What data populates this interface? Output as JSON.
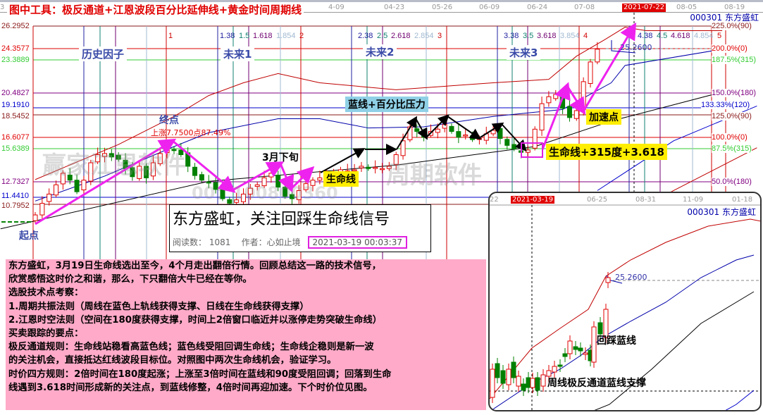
{
  "title": "图中工具：极反通道+江恩波段百分比延伸线+黄金时间周期线",
  "date_axis": [
    {
      "label": "3",
      "hl": false
    },
    {
      "label": "4-09",
      "hl": false
    },
    {
      "label": "04-23",
      "hl": false
    },
    {
      "label": "05-26",
      "hl": false
    },
    {
      "label": "06-09",
      "hl": false
    },
    {
      "label": "06-24",
      "hl": false
    },
    {
      "label": "07-08",
      "hl": false
    },
    {
      "label": "2021-07-22",
      "hl": true
    },
    {
      "label": "08-05",
      "hl": false
    },
    {
      "label": "08-19",
      "hl": false
    }
  ],
  "stock": "000301  东方盛虹",
  "price_levels": [
    {
      "price": "26.2952",
      "color": "#8b1a1a",
      "pct": "225.0%(90)"
    },
    {
      "price": "24.3577",
      "color": "#e00000",
      "pct": "200.0%(0)"
    },
    {
      "price": "23.3889",
      "color": "#33cc33",
      "pct": "187.5%(315)"
    },
    {
      "price": "20.4827",
      "color": "#800080",
      "pct": "150.0%(180)"
    },
    {
      "price": "19.1910",
      "color": "#0000cc",
      "pct": "133.33%(120)"
    },
    {
      "price": "18.5452",
      "color": "#8b1a1a",
      "pct": "125.0%(90)"
    },
    {
      "price": "16.6077",
      "color": "#e00000",
      "pct": "100.0%(0)"
    },
    {
      "price": "15.6389",
      "color": "#33cc33",
      "pct": "87.5%(315)"
    },
    {
      "price": "12.7327",
      "color": "#800080",
      "pct": "50.0%(180)"
    },
    {
      "price": "11.4410",
      "color": "#0000cc",
      "pct": ""
    },
    {
      "price": "10.7952",
      "color": "#8b1a1a",
      "pct": ""
    }
  ],
  "time_ratios": [
    {
      "a": "1.38",
      "b": "1.5",
      "c": "1.618",
      "d": "1.854",
      "n": "2"
    },
    {
      "a": "2.38",
      "b": "2.5",
      "c": "2.618",
      "d": "2.854",
      "n": "3"
    },
    {
      "a": "3.38",
      "b": "3.5",
      "c": "3.618",
      "d": "3.854",
      "n": "4"
    },
    {
      "a": "4.38",
      "b": "4.5",
      "c": "4.618",
      "d": "4.854",
      "n": "5"
    }
  ],
  "cycle_start_label": "1",
  "phases": [
    "历史因子",
    "未来1",
    "未来2",
    "未来3"
  ],
  "annotations": {
    "start": "起点",
    "end": "终点",
    "rise": "上涨7.7500点87.49%",
    "march": "3月下旬",
    "lifeline": "生命线",
    "pressure": "蓝线+百分比压力",
    "accel": "加速点",
    "lifeline315": "生命线+315度+3.618",
    "high": "25.2600"
  },
  "watermark": [
    "赢家江恩软件",
    "周期软件",
    "00：100800360"
  ],
  "news": {
    "title": "东方盛虹，关注回踩生命线信号",
    "reads_label": "阅读数：",
    "reads": "1081",
    "author_label": "作者：",
    "author": "心如止境",
    "time": "2021-03-19 00:03:37"
  },
  "notes": [
    "东方盛虹，3月19日生命线选出至今，4个月走出翻倍行情。回顾总结这一路的技术信号，",
    "欣赏感悟这时价之和谐，那么，下只翻倍大牛已经在等你。",
    "选股技术点考察：",
    "1.周期共振法则（周线在蓝色上轨线获得支撑、日线在生命线获得支撑）",
    "2.江恩时空法则（空间在180度获得支撑，时间上2倍窗口临近并以涨停走势突破生命线）",
    "买卖跟踪的要点：",
    "极反通道规则：生命线站稳看高蓝色线；蓝色线受阻回调生命线；生命线企稳则是新一波",
    "的关注机会，直接抵达红线波段目标位。对照图中两次生命线机会，验证学习。",
    "时价四方规则：2倍时间在180度起涨；上涨至3倍时间在蓝线和90度受阻回调；回落到生命",
    "线遇到3.618时间形成新的关注点，到蓝线修整，4倍时间再迎加速。下个时价位见图。"
  ],
  "inset": {
    "dates": [
      {
        "label": "22",
        "hl": false
      },
      {
        "label": "2021-03-19",
        "hl": true
      },
      {
        "label": "06-25",
        "hl": false
      },
      {
        "label": "08-31",
        "hl": false
      },
      {
        "label": "11-09",
        "hl": false
      },
      {
        "label": "01-18",
        "hl": false
      }
    ],
    "stock": "000301  东方盛虹",
    "high": "25.2600",
    "label1": "回踩蓝线",
    "label2": "周线极反通道蓝线支撑"
  },
  "colors": {
    "up": "#e00000",
    "down": "#008000",
    "arrow": "#ee22ee",
    "pink_panel": "#ffaac8"
  },
  "chart_data": {
    "type": "candlestick",
    "ylim": [
      8.5,
      26.2952
    ],
    "closes": [
      10.0,
      11.0,
      11.8,
      12.6,
      13.6,
      13.0,
      12.0,
      13.0,
      14.5,
      15.2,
      15.3,
      15.0,
      14.8,
      14.0,
      13.3,
      14.2,
      13.2,
      14.5,
      15.3,
      15.8,
      15.6,
      15.2,
      14.2,
      13.4,
      13.0,
      12.8,
      12.2,
      11.4,
      11.0,
      11.3,
      11.8,
      12.3,
      12.6,
      13.2,
      13.6,
      12.4,
      11.6,
      11.4,
      12.1,
      12.7,
      13.0,
      13.2,
      13.4,
      13.6,
      13.9,
      13.8,
      13.9,
      14.2,
      14.0,
      14.1,
      14.0,
      14.2,
      15.2,
      16.4,
      17.6,
      17.2,
      16.7,
      17.2,
      17.4,
      17.8,
      17.2,
      16.7,
      16.9,
      16.5,
      16.6,
      17.0,
      17.3,
      16.6,
      16.0,
      15.7,
      15.4,
      15.6,
      17.4,
      19.6,
      20.2,
      20.4,
      19.2,
      18.4,
      19.0,
      21.5,
      23.2,
      24.3
    ],
    "indicators": {
      "red_upper": [
        [
          0,
          13.05
        ],
        [
          12,
          16.08
        ],
        [
          20,
          18.5
        ],
        [
          25,
          20.3
        ],
        [
          30,
          21.4
        ],
        [
          35,
          22.2
        ],
        [
          41,
          21.4
        ],
        [
          52,
          20.8
        ],
        [
          66,
          21.4
        ],
        [
          74,
          21.7
        ],
        [
          78,
          23.7
        ],
        [
          82,
          25.1
        ],
        [
          85,
          26.2
        ],
        [
          88,
          25.9
        ],
        [
          99,
          25.9
        ]
      ],
      "blue_mid": [
        [
          0,
          11.2
        ],
        [
          10,
          13.35
        ],
        [
          20,
          15.9
        ],
        [
          25,
          17.1
        ],
        [
          35,
          18.3
        ],
        [
          41,
          18.3
        ],
        [
          48,
          17.5
        ],
        [
          56,
          17.6
        ],
        [
          66,
          18.5
        ],
        [
          76,
          19.1
        ],
        [
          83,
          21.4
        ],
        [
          85,
          22.9
        ],
        [
          99,
          24.3
        ]
      ],
      "blue_lower": [
        [
          81,
          12.1
        ],
        [
          92,
          16.4
        ],
        [
          104,
          19.4
        ]
      ],
      "black_life": [
        [
          -5,
          8.8
        ],
        [
          25,
          12.9
        ],
        [
          52,
          14.3
        ],
        [
          72,
          15.9
        ],
        [
          83,
          18.1
        ],
        [
          99,
          20.6
        ]
      ],
      "red_lower": [
        [
          91,
          11.8
        ],
        [
          104,
          15.8
        ]
      ]
    }
  }
}
